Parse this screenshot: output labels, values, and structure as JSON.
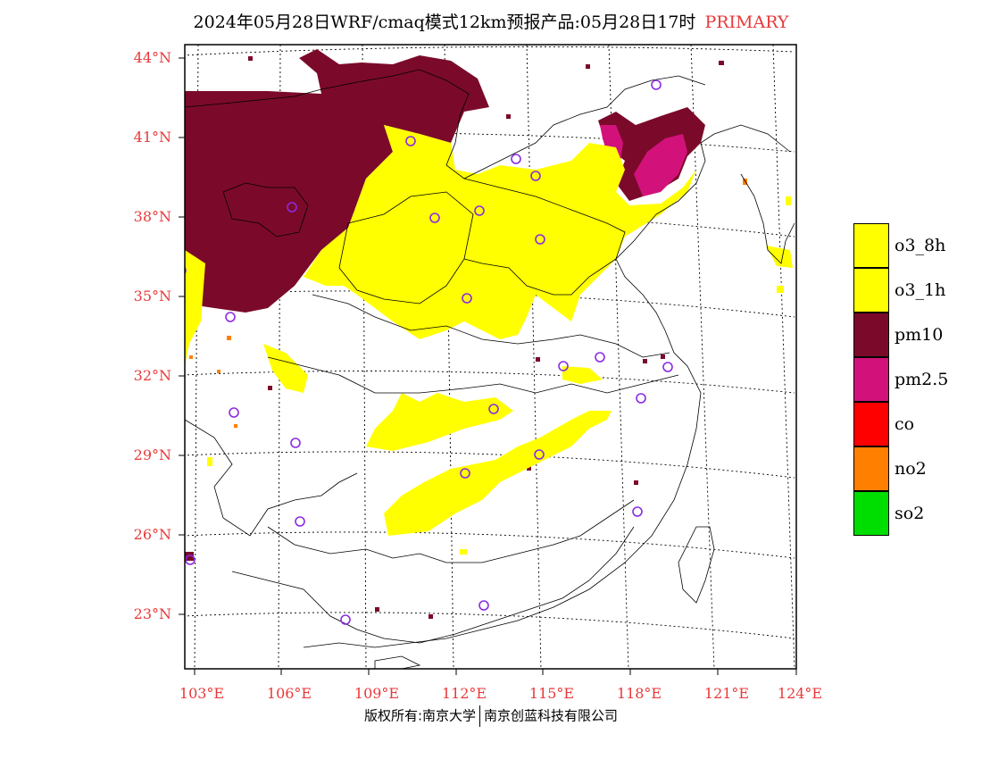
{
  "header": {
    "title": "2024年05月28日WRF/cmaq模式12km预报产品:05月28日17时",
    "tag": "PRIMARY",
    "tag_color": "#e8393a"
  },
  "axes": {
    "lat_labels": [
      "44°N",
      "41°N",
      "38°N",
      "35°N",
      "32°N",
      "29°N",
      "26°N",
      "23°N"
    ],
    "lon_labels": [
      "103°E",
      "106°E",
      "109°E",
      "112°E",
      "115°E",
      "118°E",
      "121°E",
      "124°E"
    ]
  },
  "legend": [
    {
      "label": "o3_8h",
      "color": "#ffff00"
    },
    {
      "label": "o3_1h",
      "color": "#ffff00"
    },
    {
      "label": "pm10",
      "color": "#7b0a2a"
    },
    {
      "label": "pm2.5",
      "color": "#d2127a"
    },
    {
      "label": "co",
      "color": "#ff0000"
    },
    {
      "label": "no2",
      "color": "#ff7f00"
    },
    {
      "label": "so2",
      "color": "#00dd00"
    }
  ],
  "footer": {
    "left": "版权所有:南京大学",
    "right": "南京创蓝科技有限公司"
  },
  "colors": {
    "pm10": "#7b0a2a",
    "pm25": "#d2127a",
    "o3": "#ffff00",
    "no2": "#ff7f00",
    "station": "#8a2be2",
    "axis_text": "#e8393a"
  }
}
